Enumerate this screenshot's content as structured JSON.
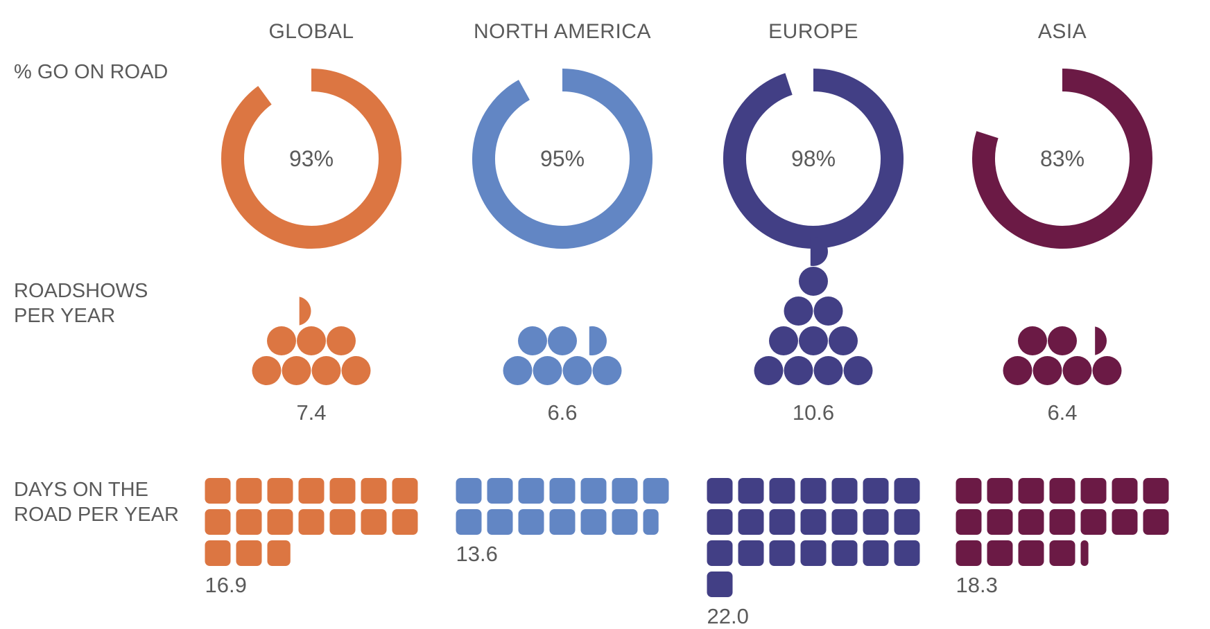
{
  "row_labels": {
    "go_on_road": "% GO ON ROAD",
    "roadshows_1": "ROADSHOWS",
    "roadshows_2": "PER YEAR",
    "days_1": "DAYS ON THE",
    "days_2": "ROAD PER YEAR"
  },
  "chart_data": {
    "type": "pictogram",
    "categories": [
      "GLOBAL",
      "NORTH AMERICA",
      "EUROPE",
      "ASIA"
    ],
    "colors": [
      "#dc7642",
      "#6286c4",
      "#423f85",
      "#6b1a45"
    ],
    "metrics": {
      "go_on_road_pct": {
        "values": [
          93,
          95,
          98,
          83
        ],
        "labels": [
          "93%",
          "95%",
          "98%",
          "83%"
        ]
      },
      "roadshows_per_year": {
        "values": [
          7.4,
          6.6,
          10.6,
          6.4
        ],
        "labels": [
          "7.4",
          "6.6",
          "10.6",
          "6.4"
        ]
      },
      "days_on_road_per_year": {
        "values": [
          16.9,
          13.6,
          22.0,
          18.3
        ],
        "labels": [
          "16.9",
          "13.6",
          "22.0",
          "18.3"
        ]
      }
    }
  }
}
